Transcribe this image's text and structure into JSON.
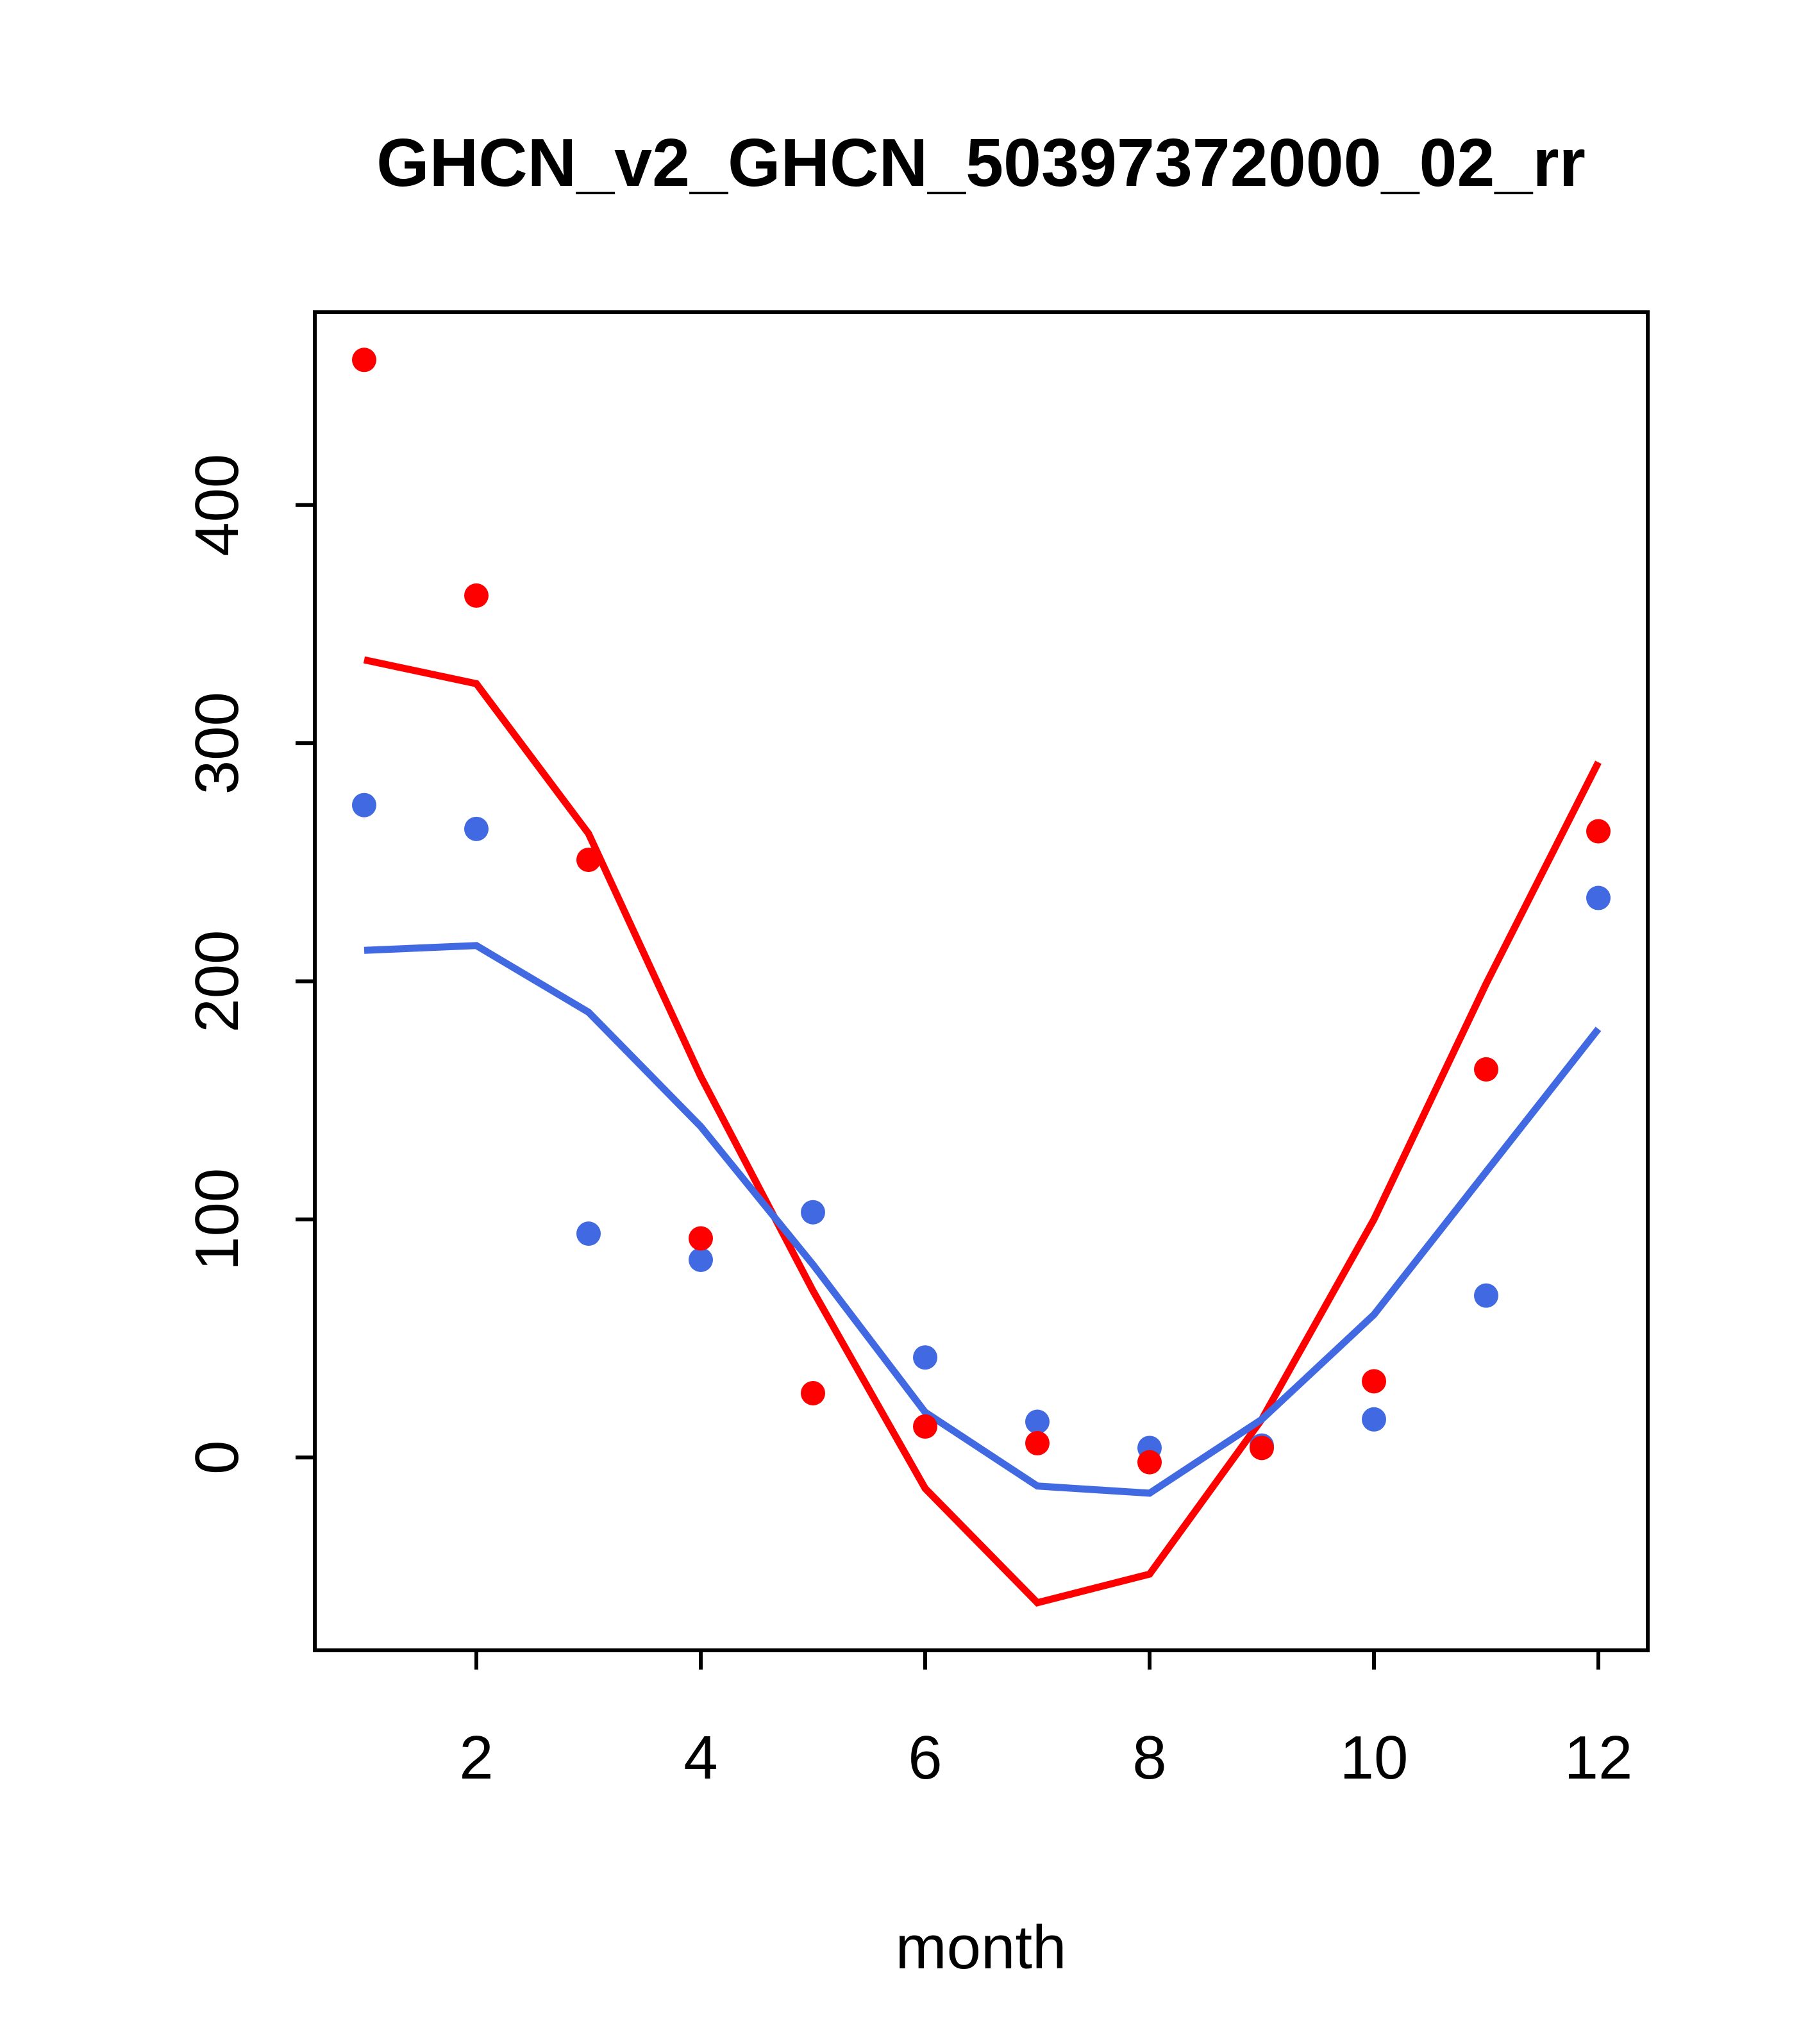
{
  "title": "GHCN_v2_GHCN_50397372000_02_rr",
  "chart_data": {
    "type": "scatter",
    "title": "GHCN_v2_GHCN_50397372000_02_rr",
    "xlabel": "month",
    "ylabel": "",
    "xlim": [
      0.56,
      12.44
    ],
    "ylim": [
      -81,
      481
    ],
    "x_ticks": [
      2,
      4,
      6,
      8,
      10,
      12
    ],
    "y_ticks": [
      0,
      100,
      200,
      300,
      400
    ],
    "grid": false,
    "legend": "none",
    "x": [
      1,
      2,
      3,
      4,
      5,
      6,
      7,
      8,
      9,
      10,
      11,
      12
    ],
    "colors": {
      "red": "#FF0000",
      "blue": "#4169E1",
      "axis": "#000000"
    },
    "series": [
      {
        "name": "red-line",
        "kind": "line",
        "color": "#FF0000",
        "values": [
          335,
          325,
          262,
          160,
          70,
          -13,
          -61,
          -49,
          16,
          100,
          199,
          292
        ]
      },
      {
        "name": "blue-line",
        "kind": "line",
        "color": "#4169E1",
        "values": [
          213,
          215,
          187,
          139,
          81,
          19,
          -12,
          -15,
          16,
          60,
          120,
          180
        ]
      },
      {
        "name": "blue-points",
        "kind": "points",
        "color": "#4169E1",
        "values": [
          274,
          264,
          94,
          83,
          103,
          42,
          15,
          4,
          5,
          16,
          68,
          235
        ]
      },
      {
        "name": "red-points",
        "kind": "points",
        "color": "#FF0000",
        "values": [
          461,
          362,
          251,
          92,
          27,
          13,
          6,
          -2,
          4,
          32,
          163,
          263
        ]
      }
    ]
  }
}
